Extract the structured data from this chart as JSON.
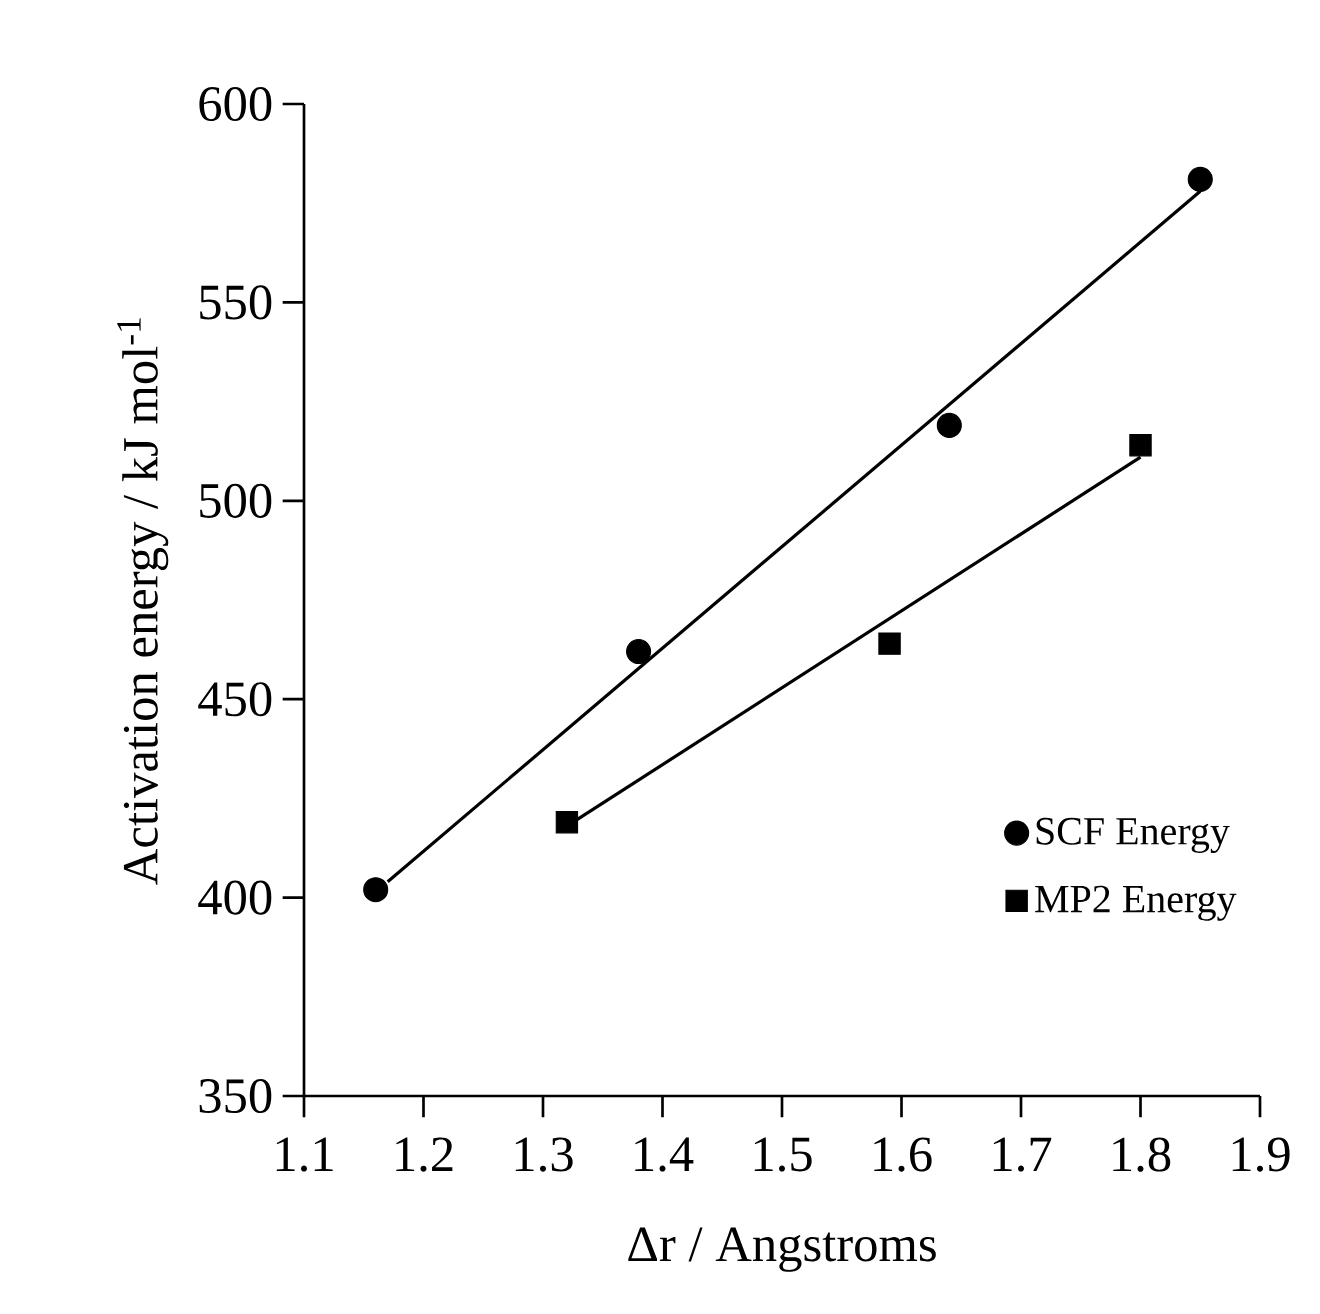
{
  "chart_data": {
    "type": "scatter",
    "xlabel": "Δr / Angstroms",
    "ylabel": "Activation energy / kJ mol$^{-1}$",
    "xlim": [
      1.1,
      1.9
    ],
    "ylim": [
      350,
      600
    ],
    "xticks": [
      1.1,
      1.2,
      1.3,
      1.4,
      1.5,
      1.6,
      1.7,
      1.8,
      1.9
    ],
    "yticks": [
      350,
      400,
      450,
      500,
      550,
      600
    ],
    "grid": false,
    "legend": "bottom right",
    "series": [
      {
        "name": "SCF Energy",
        "color": "#000000",
        "marker": "circle",
        "x": [
          1.16,
          1.38,
          1.64,
          1.85
        ],
        "values": [
          402,
          462,
          519,
          581
        ]
      },
      {
        "name": "MP2 Energy",
        "color": "#000000",
        "marker": "square",
        "x": [
          1.32,
          1.59,
          1.8
        ],
        "values": [
          419,
          464,
          514
        ]
      },
      {
        "type": "line",
        "color": "#000000",
        "line_style": "solid",
        "x": [
          1.17,
          1.85
        ],
        "values": [
          404,
          578
        ]
      },
      {
        "type": "line",
        "color": "#000000",
        "line_style": "solid",
        "x": [
          1.32,
          1.8
        ],
        "values": [
          418,
          511
        ]
      }
    ]
  }
}
